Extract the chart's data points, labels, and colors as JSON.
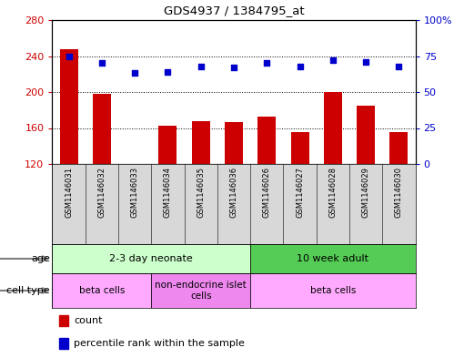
{
  "title": "GDS4937 / 1384795_at",
  "samples": [
    "GSM1146031",
    "GSM1146032",
    "GSM1146033",
    "GSM1146034",
    "GSM1146035",
    "GSM1146036",
    "GSM1146026",
    "GSM1146027",
    "GSM1146028",
    "GSM1146029",
    "GSM1146030"
  ],
  "counts": [
    248,
    198,
    120,
    163,
    168,
    167,
    173,
    155,
    200,
    185,
    155
  ],
  "percentile_ranks": [
    75,
    70,
    63,
    64,
    68,
    67,
    70,
    68,
    72,
    71,
    68
  ],
  "ylim_left": [
    120,
    280
  ],
  "ylim_right": [
    0,
    100
  ],
  "yticks_left": [
    120,
    160,
    200,
    240,
    280
  ],
  "yticks_right": [
    0,
    25,
    50,
    75,
    100
  ],
  "ytick_labels_right": [
    "0",
    "25",
    "50",
    "75",
    "100%"
  ],
  "bar_color": "#cc0000",
  "dot_color": "#0000cc",
  "bar_width": 0.55,
  "age_groups": [
    {
      "label": "2-3 day neonate",
      "start": 0,
      "end": 6,
      "color": "#ccffcc"
    },
    {
      "label": "10 week adult",
      "start": 6,
      "end": 11,
      "color": "#55cc55"
    }
  ],
  "cell_type_groups": [
    {
      "label": "beta cells",
      "start": 0,
      "end": 3,
      "color": "#ffaaff"
    },
    {
      "label": "non-endocrine islet\ncells",
      "start": 3,
      "end": 6,
      "color": "#ee88ee"
    },
    {
      "label": "beta cells",
      "start": 6,
      "end": 11,
      "color": "#ffaaff"
    }
  ],
  "legend_count_color": "#cc0000",
  "legend_dot_color": "#0000cc",
  "grid_color": "#000000",
  "background_color": "#ffffff",
  "plot_bg_color": "#ffffff",
  "sample_bg_color": "#d8d8d8"
}
